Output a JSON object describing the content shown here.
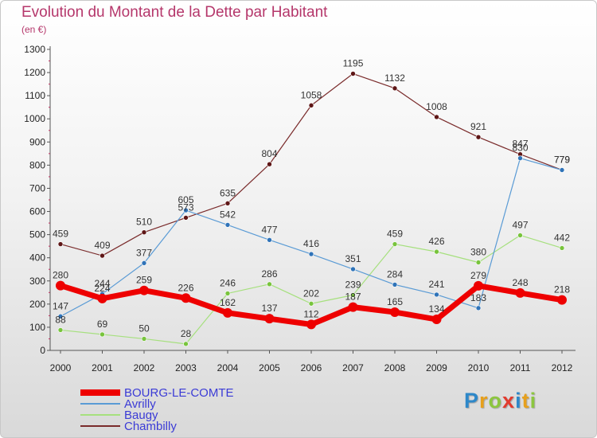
{
  "title": "Evolution du Montant de la Dette par Habitant",
  "subtitle": "(en €)",
  "logo": {
    "letters": [
      {
        "char": "P",
        "color": "#2e88c9"
      },
      {
        "char": "r",
        "color": "#e7a01c"
      },
      {
        "char": "o",
        "color": "#8cc63f"
      },
      {
        "char": "x",
        "color": "#e23b2e"
      },
      {
        "char": "i",
        "color": "#2e88c9"
      },
      {
        "char": "t",
        "color": "#e7a01c"
      },
      {
        "char": "i",
        "color": "#8cc63f"
      }
    ]
  },
  "chart_data": {
    "type": "line",
    "x": [
      "2000",
      "2001",
      "2002",
      "2003",
      "2004",
      "2005",
      "2006",
      "2007",
      "2008",
      "2009",
      "2010",
      "2011",
      "2012"
    ],
    "ylim": [
      0,
      1300
    ],
    "yticks": [
      0,
      100,
      200,
      300,
      400,
      500,
      600,
      700,
      800,
      900,
      1000,
      1100,
      1200,
      1300
    ],
    "grid": false,
    "legend_position": "bottom-left",
    "series": [
      {
        "name": "BOURG-LE-COMTE",
        "color": "#ee0000",
        "stroke_width": 7,
        "marker": "#ee0000",
        "values": [
          280,
          224,
          259,
          226,
          162,
          137,
          112,
          187,
          165,
          134,
          279,
          248,
          218
        ],
        "labels": [
          "280",
          "224",
          "259",
          "226",
          "162",
          "137",
          "112",
          "187",
          "165",
          "134",
          "279",
          "248",
          "218"
        ]
      },
      {
        "name": "Avrilly",
        "color": "#5a9bd5",
        "stroke_width": 1.2,
        "marker": "#2f73b8",
        "values": [
          147,
          244,
          377,
          605,
          542,
          477,
          416,
          351,
          284,
          241,
          183,
          830,
          779
        ],
        "labels": [
          "147",
          "244",
          "377",
          "605",
          "542",
          "477",
          "416",
          "351",
          "284",
          "241",
          "183",
          "830",
          "779"
        ]
      },
      {
        "name": "Baugy",
        "color": "#a6e07e",
        "stroke_width": 1.2,
        "marker": "#78c43c",
        "values": [
          88,
          69,
          50,
          28,
          246,
          286,
          202,
          239,
          459,
          426,
          380,
          497,
          442
        ],
        "labels": [
          "88",
          "69",
          "50",
          "28",
          "246",
          "286",
          "202",
          "239",
          "459",
          "426",
          "380",
          "497",
          "442"
        ]
      },
      {
        "name": "Chambilly",
        "color": "#7a2b2b",
        "stroke_width": 1.2,
        "marker": "#5e1616",
        "values": [
          459,
          409,
          510,
          573,
          635,
          804,
          1058,
          1195,
          1132,
          1008,
          921,
          847,
          779
        ],
        "labels": [
          "459",
          "409",
          "510",
          "573",
          "635",
          "804",
          "1058",
          "1195",
          "1132",
          "1008",
          "921",
          "847",
          "779"
        ]
      }
    ]
  }
}
